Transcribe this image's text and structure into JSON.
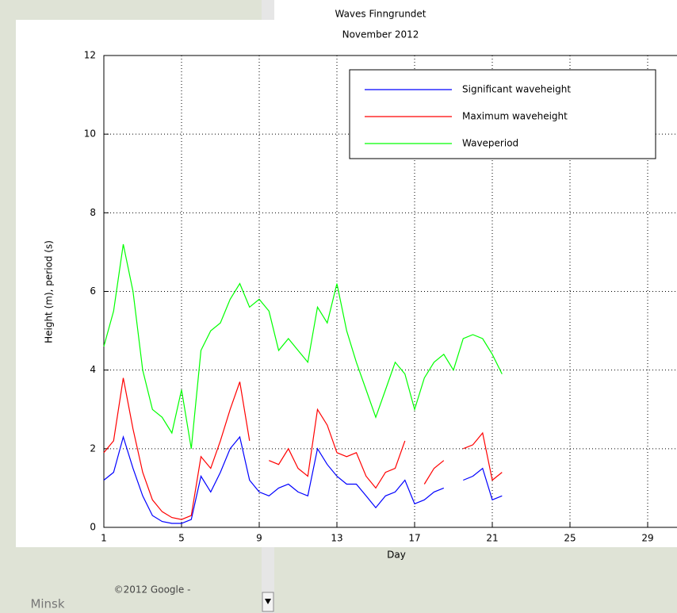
{
  "chart_data": {
    "type": "line",
    "title": "Waves Finngrundet",
    "subtitle": "November 2012",
    "x_label": "Day",
    "y_label": "Height (m), period (s)",
    "x": [
      1,
      1.5,
      2,
      2.5,
      3,
      3.5,
      4,
      4.5,
      5,
      5.5,
      6,
      6.5,
      7,
      7.5,
      8,
      8.5,
      9,
      9.5,
      10,
      10.5,
      11,
      11.5,
      12,
      12.5,
      13,
      13.5,
      14,
      14.5,
      15,
      15.5,
      16,
      16.5,
      17,
      17.5,
      18,
      18.5,
      19,
      19.5,
      20,
      20.5,
      21,
      21.5
    ],
    "series": [
      {
        "name": "Significant waveheight",
        "color": "#0000ff",
        "values": [
          1.2,
          1.4,
          2.3,
          1.5,
          0.8,
          0.3,
          0.15,
          0.1,
          0.1,
          0.2,
          1.3,
          0.9,
          1.4,
          2.0,
          2.3,
          1.2,
          0.9,
          0.8,
          1.0,
          1.1,
          0.9,
          0.8,
          2.0,
          1.6,
          1.3,
          1.1,
          1.1,
          0.8,
          0.5,
          0.8,
          0.9,
          1.2,
          0.6,
          0.7,
          0.9,
          1.0,
          null,
          1.2,
          1.3,
          1.5,
          0.7,
          0.8
        ]
      },
      {
        "name": "Maximum waveheight",
        "color": "#ff0000",
        "values": [
          1.9,
          2.2,
          3.8,
          2.5,
          1.4,
          0.7,
          0.4,
          0.25,
          0.2,
          0.3,
          1.8,
          1.5,
          2.2,
          3.0,
          3.7,
          2.2,
          null,
          1.7,
          1.6,
          2.0,
          1.5,
          1.3,
          3.0,
          2.6,
          1.9,
          1.8,
          1.9,
          1.3,
          1.0,
          1.4,
          1.5,
          2.2,
          null,
          1.1,
          1.5,
          1.7,
          null,
          2.0,
          2.1,
          2.4,
          1.2,
          1.4
        ]
      },
      {
        "name": "Waveperiod",
        "color": "#00ff00",
        "values": [
          4.6,
          5.5,
          7.2,
          6.0,
          4.0,
          3.0,
          2.8,
          2.4,
          3.5,
          2.0,
          4.5,
          5.0,
          5.2,
          5.8,
          6.2,
          5.6,
          5.8,
          5.5,
          4.5,
          4.8,
          4.5,
          4.2,
          5.6,
          5.2,
          6.2,
          5.0,
          4.2,
          3.5,
          2.8,
          3.5,
          4.2,
          3.9,
          3.0,
          3.8,
          4.2,
          4.4,
          4.0,
          4.8,
          4.9,
          4.8,
          4.4,
          3.9
        ]
      }
    ],
    "xlim": [
      1,
      31
    ],
    "xticks": [
      1,
      5,
      9,
      13,
      17,
      21,
      25,
      29
    ],
    "ylim": [
      0,
      12
    ],
    "yticks": [
      0,
      2,
      4,
      6,
      8,
      10,
      12
    ],
    "grid": true,
    "legend": "upper right"
  },
  "background": {
    "map_labels": [
      "Minsk",
      "©2012 Google -"
    ]
  }
}
